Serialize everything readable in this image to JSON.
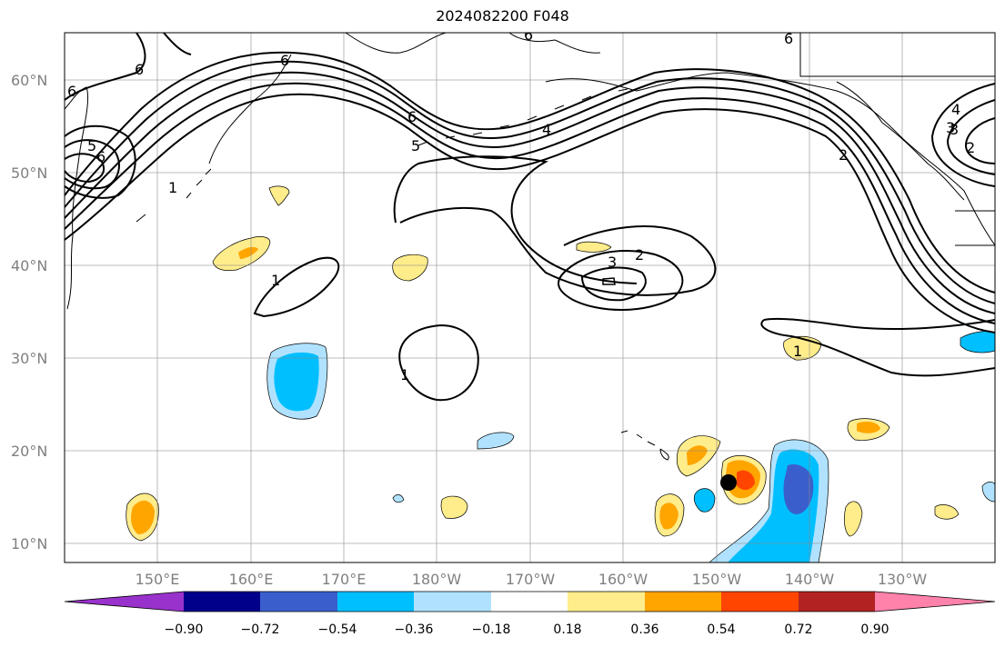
{
  "title": "2024082200 F048",
  "map": {
    "lat_labels": [
      "60°N",
      "50°N",
      "40°N",
      "30°N",
      "20°N",
      "10°N"
    ],
    "lon_labels": [
      "150°E",
      "160°E",
      "170°E",
      "180°W",
      "170°W",
      "160°W",
      "150°W",
      "140°W",
      "130°W"
    ],
    "contour_labels": [
      "6",
      "6",
      "5",
      "6",
      "1",
      "6",
      "6",
      "5",
      "4",
      "3",
      "2",
      "2",
      "3",
      "1",
      "1",
      "1",
      "6",
      "4",
      "3",
      "2",
      "6"
    ],
    "marker": {
      "lon": -148.5,
      "lat": 16.5,
      "label": ""
    }
  },
  "colorbar": {
    "ticks": [
      "−0.90",
      "−0.72",
      "−0.54",
      "−0.36",
      "−0.18",
      "0.18",
      "0.36",
      "0.54",
      "0.72",
      "0.90"
    ],
    "colors": [
      "#9932CC",
      "#00008B",
      "#3A5FCD",
      "#00BFFF",
      "#B0E2FF",
      "#FFFFFF",
      "#FFEC8B",
      "#FFA500",
      "#FF4500",
      "#B22222",
      "#FF82AB"
    ]
  }
}
